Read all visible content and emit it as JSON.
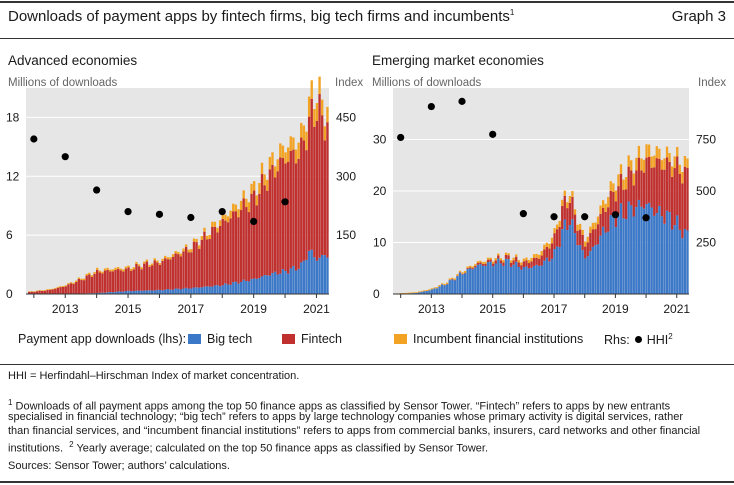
{
  "header": {
    "title": "Downloads of payment apps by fintech firms, big tech firms and incumbents",
    "title_sup": "1",
    "graph_label": "Graph 3"
  },
  "colors": {
    "big_tech": "#3b78c8",
    "fintech": "#c0302e",
    "incumbent": "#f2a324",
    "hhi": "#000000",
    "plot_bg": "#e6e6e6"
  },
  "legend": {
    "prefix": "Payment app downloads (lhs):",
    "big_tech": "Big tech",
    "fintech": "Fintech",
    "incumbent": "Incumbent financial institutions",
    "rhs_prefix": "Rhs:",
    "hhi": "HHI",
    "hhi_sup": "2"
  },
  "notes": {
    "hhi_def": "HHI = Herfindahl–Hirschman Index of market concentration.",
    "fn1_lines": [
      "Downloads of all payment apps among the top 50 finance apps as classified by Sensor Tower. “Fintech” refers to apps by new entrants",
      "specialised in financial technology; “big tech” refers to apps by large technology companies whose primary activity is digital services, rather",
      "than financial services, and “incumbent financial institutions” refers to apps from commercial banks, insurers, card networks and other financial"
    ],
    "fn1_sup": "1",
    "fn2_line_start": "institutions.",
    "fn2_sup": "2",
    "fn2_text": "Yearly average; calculated on the top 50 finance apps as classified by Sensor Tower.",
    "sources": "Sources: Sensor Tower; authors’ calculations."
  },
  "chart_data": [
    {
      "type": "bar",
      "title": "Advanced economies",
      "ylabel_left": "Millions of downloads",
      "ylabel_right": "Index",
      "ylim_left": [
        0,
        21
      ],
      "yticks_left": [
        0,
        6,
        12,
        18
      ],
      "ylim_right": [
        0,
        525
      ],
      "yticks_right": [
        150,
        300,
        450
      ],
      "x_range": [
        2011.75,
        2021.4
      ],
      "xticks": [
        "2013",
        "2015",
        "2017",
        "2019",
        "2021"
      ],
      "xtick_values": [
        2013,
        2015,
        2017,
        2019,
        2021
      ],
      "stacked_series": [
        {
          "name": "Big tech",
          "anchors_x": [
            2011.85,
            2013.0,
            2014.0,
            2015.0,
            2016.0,
            2017.0,
            2018.0,
            2018.5,
            2019.0,
            2019.5,
            2020.0,
            2020.5,
            2020.8,
            2021.0,
            2021.3
          ],
          "anchors_y": [
            0,
            0,
            0.1,
            0.3,
            0.4,
            0.6,
            0.9,
            1.2,
            1.5,
            2.0,
            2.3,
            2.8,
            4.5,
            3.5,
            4.0
          ]
        },
        {
          "name": "Fintech",
          "anchors_x": [
            2011.85,
            2012.5,
            2013.0,
            2013.5,
            2014.0,
            2014.5,
            2015.0,
            2015.5,
            2016.0,
            2016.5,
            2017.0,
            2017.5,
            2018.0,
            2018.5,
            2019.0,
            2019.5,
            2020.0,
            2020.5,
            2020.8,
            2021.0,
            2021.3
          ],
          "anchors_y": [
            0.2,
            0.4,
            0.8,
            1.4,
            2.1,
            2.2,
            2.2,
            2.6,
            2.8,
            3.4,
            4.0,
            5.1,
            6.3,
            7.2,
            8.2,
            10.0,
            11.5,
            11.6,
            13.3,
            15.5,
            13.2
          ]
        },
        {
          "name": "Incumbent financial institutions",
          "anchors_x": [
            2011.85,
            2013.0,
            2014.0,
            2015.0,
            2016.0,
            2017.0,
            2017.5,
            2018.0,
            2018.5,
            2019.0,
            2019.5,
            2020.0,
            2020.5,
            2020.8,
            2021.0,
            2021.3
          ],
          "anchors_y": [
            0.05,
            0.1,
            0.2,
            0.2,
            0.2,
            0.3,
            0.4,
            0.6,
            0.8,
            1.0,
            1.2,
            1.3,
            1.5,
            2.0,
            1.8,
            1.5
          ]
        }
      ],
      "hhi": {
        "x": [
          2012.0,
          2013.0,
          2014.0,
          2015.0,
          2016.0,
          2017.0,
          2018.0,
          2019.0,
          2020.0
        ],
        "y": [
          395,
          350,
          265,
          210,
          203,
          195,
          210,
          185,
          235
        ]
      }
    },
    {
      "type": "bar",
      "title": "Emerging market economies",
      "ylabel_left": "Millions of downloads",
      "ylabel_right": "Index",
      "ylim_left": [
        0,
        40
      ],
      "yticks_left": [
        0,
        10,
        20,
        30
      ],
      "ylim_right": [
        0,
        1000
      ],
      "yticks_right": [
        250,
        500,
        750
      ],
      "x_range": [
        2011.75,
        2021.4
      ],
      "xticks": [
        "2013",
        "2015",
        "2017",
        "2019",
        "2021"
      ],
      "xtick_values": [
        2013,
        2015,
        2017,
        2019,
        2021
      ],
      "stacked_series": [
        {
          "name": "Big tech",
          "anchors_x": [
            2011.85,
            2012.5,
            2013.0,
            2013.5,
            2014.0,
            2014.5,
            2015.0,
            2015.5,
            2016.0,
            2016.5,
            2017.0,
            2017.3,
            2017.5,
            2017.8,
            2018.0,
            2018.3,
            2018.6,
            2019.0,
            2019.5,
            2020.0,
            2020.3,
            2020.7,
            2021.0,
            2021.3
          ],
          "anchors_y": [
            0,
            0.2,
            0.8,
            2.0,
            4.0,
            5.5,
            6.0,
            6.3,
            5.0,
            5.5,
            7.5,
            12.5,
            14.5,
            10.0,
            7.0,
            9.0,
            12.0,
            15.0,
            16.5,
            17.5,
            16.0,
            15.0,
            13.5,
            11.5
          ]
        },
        {
          "name": "Fintech",
          "anchors_x": [
            2011.85,
            2013.0,
            2014.0,
            2015.0,
            2016.0,
            2016.5,
            2017.0,
            2017.3,
            2017.5,
            2017.8,
            2018.0,
            2018.3,
            2018.6,
            2019.0,
            2019.5,
            2020.0,
            2020.3,
            2020.7,
            2021.0,
            2021.3
          ],
          "anchors_y": [
            0,
            0,
            0.1,
            0.5,
            1.0,
            1.5,
            3.0,
            4.5,
            4.5,
            3.0,
            2.5,
            3.5,
            4.0,
            5.0,
            6.5,
            8.0,
            9.5,
            10.0,
            11.0,
            11.5
          ]
        },
        {
          "name": "Incumbent financial institutions",
          "anchors_x": [
            2011.85,
            2013.0,
            2014.0,
            2015.0,
            2016.0,
            2016.5,
            2017.0,
            2017.5,
            2018.0,
            2018.5,
            2019.0,
            2019.5,
            2020.0,
            2020.5,
            2021.0,
            2021.3
          ],
          "anchors_y": [
            0.1,
            0.2,
            0.3,
            0.4,
            0.5,
            0.8,
            1.0,
            1.2,
            1.0,
            1.5,
            2.0,
            2.2,
            2.5,
            2.0,
            2.0,
            2.0
          ]
        }
      ],
      "hhi": {
        "x": [
          2012.0,
          2013.0,
          2014.0,
          2015.0,
          2016.0,
          2017.0,
          2018.0,
          2019.0,
          2020.0
        ],
        "y": [
          760,
          910,
          935,
          775,
          390,
          375,
          375,
          385,
          370
        ]
      }
    }
  ]
}
